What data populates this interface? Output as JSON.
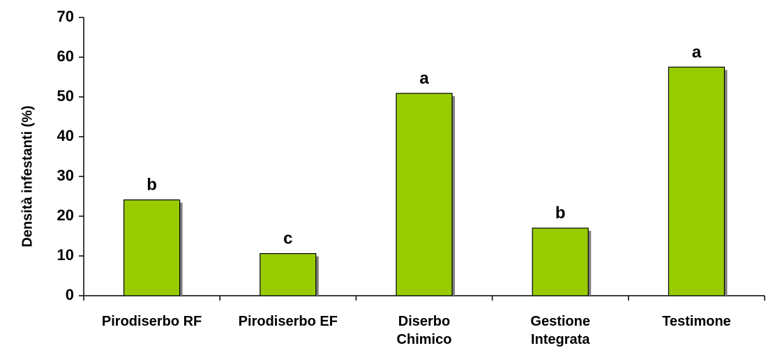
{
  "chart_data": {
    "type": "bar",
    "title": "",
    "xlabel": "",
    "ylabel": "Densità  infestanti (%)",
    "ylim": [
      0,
      70
    ],
    "yticks": [
      0,
      10,
      20,
      30,
      40,
      50,
      60,
      70
    ],
    "categories": [
      [
        "Pirodiserbo RF"
      ],
      [
        "Pirodiserbo EF"
      ],
      [
        "Diserbo",
        "Chimico"
      ],
      [
        "Gestione",
        "Integrata"
      ],
      [
        "Testimone"
      ]
    ],
    "values": [
      24.1,
      10.6,
      50.9,
      17.0,
      57.5
    ],
    "significance_letters": [
      "b",
      "c",
      "a",
      "b",
      "a"
    ],
    "grid": false,
    "legend": "none",
    "colors": {
      "bar_fill": "#99cc00",
      "bar_stroke": "#000000",
      "bar_shadow": "#808080",
      "axis": "#000000"
    }
  }
}
